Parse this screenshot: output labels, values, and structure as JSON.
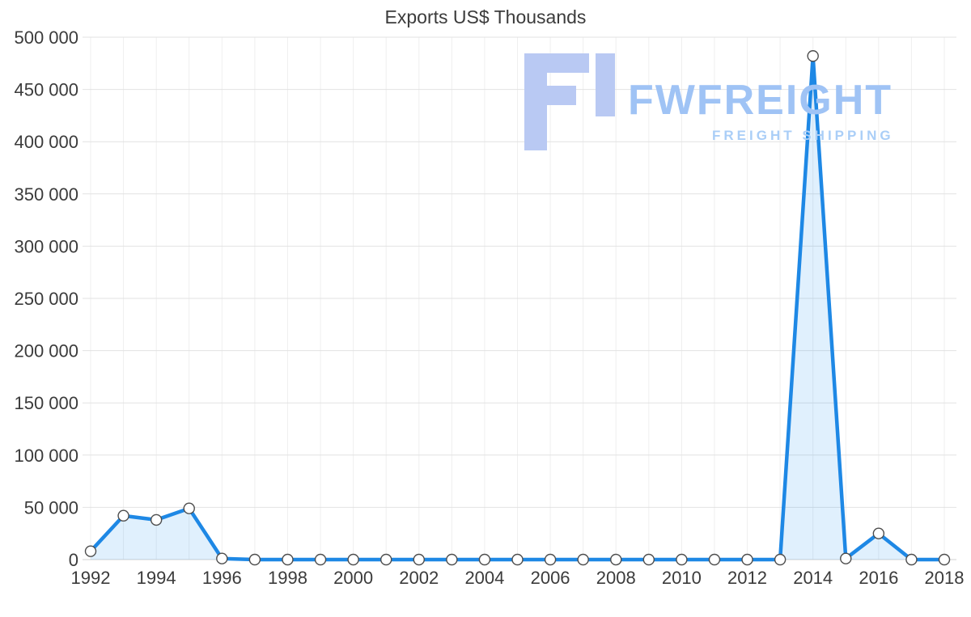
{
  "chart_data": {
    "type": "line",
    "title": "Exports US$ Thousands",
    "x": [
      1992,
      1993,
      1994,
      1995,
      1996,
      1997,
      1998,
      1999,
      2000,
      2001,
      2002,
      2003,
      2004,
      2005,
      2006,
      2007,
      2008,
      2009,
      2010,
      2011,
      2012,
      2013,
      2014,
      2015,
      2016,
      2017,
      2018
    ],
    "values": [
      8000,
      42000,
      38000,
      49000,
      1000,
      0,
      0,
      0,
      0,
      0,
      0,
      0,
      0,
      0,
      0,
      0,
      0,
      0,
      0,
      0,
      0,
      0,
      482000,
      1000,
      25000,
      0,
      0
    ],
    "x_tick_labels": [
      "1992",
      "1994",
      "1996",
      "1998",
      "2000",
      "2002",
      "2004",
      "2006",
      "2008",
      "2010",
      "2012",
      "2014",
      "2016",
      "2018"
    ],
    "x_ticks": [
      1992,
      1994,
      1996,
      1998,
      2000,
      2002,
      2004,
      2006,
      2008,
      2010,
      2012,
      2014,
      2016,
      2018
    ],
    "y_ticks": [
      0,
      50000,
      100000,
      150000,
      200000,
      250000,
      300000,
      350000,
      400000,
      450000,
      500000
    ],
    "y_tick_labels": [
      "0",
      "50 000",
      "100 000",
      "150 000",
      "200 000",
      "250 000",
      "300 000",
      "350 000",
      "400 000",
      "450 000",
      "500 000"
    ],
    "xlim": [
      1992,
      2018
    ],
    "ylim": [
      0,
      500000
    ],
    "grid": true,
    "legend": "none",
    "xlabel": "",
    "ylabel": "",
    "colors": {
      "line": "#1e88e5",
      "area": "rgba(33, 150, 243, 0.14)",
      "marker_fill": "#ffffff",
      "marker_stroke": "#4d4d4d",
      "grid": "#e2e2e2",
      "grid_zero": "#d2d2d2",
      "axis_text": "#3b3b3b"
    }
  },
  "watermark": {
    "brand": "FWFREIGHT",
    "tagline": "FREIGHT SHIPPING",
    "logo_color": "#b9c9f3",
    "brand_color": "#9fc3f5",
    "tagline_color": "#aacef7"
  }
}
